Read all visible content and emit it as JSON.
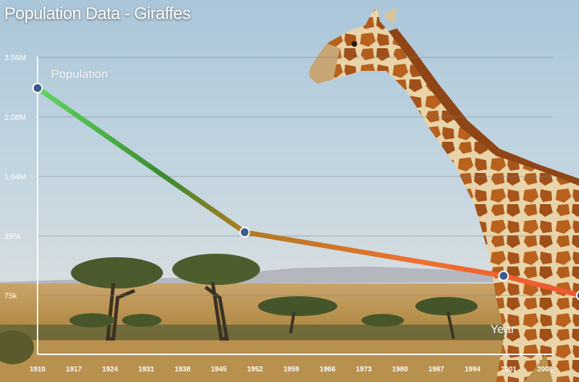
{
  "title": "Population Data - Giraffes",
  "chart_data": {
    "type": "line",
    "title": "Population Data - Giraffes",
    "ylabel": "Population",
    "xlabel": "Year",
    "yscale": "log",
    "y_ticks": [
      {
        "label": "3.56M",
        "value": 3560000
      },
      {
        "label": "2.08M",
        "value": 2080000
      },
      {
        "label": "1.04M",
        "value": 1040000
      },
      {
        "label": "395k",
        "value": 395000
      },
      {
        "label": "75k",
        "value": 75000
      }
    ],
    "x_ticks": [
      "1910",
      "1917",
      "1924",
      "1931",
      "1938",
      "1945",
      "1952",
      "1959",
      "1966",
      "1973",
      "1980",
      "1987",
      "1994",
      "2001",
      "2008"
    ],
    "xlim": [
      1910,
      2015
    ],
    "series": [
      {
        "points": [
          {
            "x": 1910,
            "y": 2700000
          },
          {
            "x": 1950,
            "y": 420000
          },
          {
            "x": 2000,
            "y": 130000
          },
          {
            "x": 2015,
            "y": 75000
          }
        ]
      }
    ],
    "line_gradient": [
      "#5fd85f",
      "#3a8a2e",
      "#b07a20",
      "#f07030",
      "#f05a30"
    ],
    "marker_color": "#3c5a8a",
    "grid": true
  }
}
